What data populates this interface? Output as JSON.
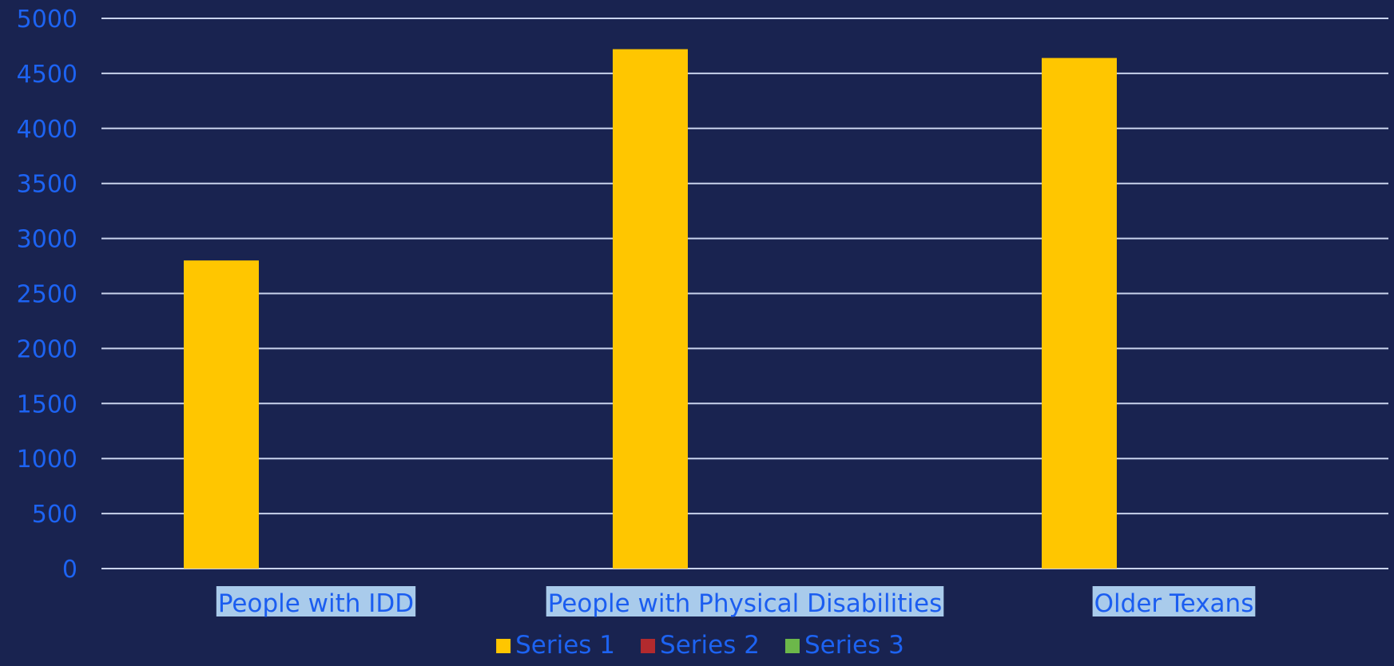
{
  "colors": {
    "background": "#192350",
    "gridline": "#C9D3EC",
    "axis_text": "#1D63F2",
    "category_label_bg": "#A9CBEB",
    "category_label_text": "#1B5DF0"
  },
  "chart_data": {
    "type": "bar",
    "categories": [
      "People with IDD",
      "People with Physical Disabilities",
      "Older Texans"
    ],
    "series": [
      {
        "name": "Series 1",
        "color": "#FFC600",
        "values": [
          2800,
          4720,
          4640
        ]
      },
      {
        "name": "Series 2",
        "color": "#B22A2E",
        "values": [
          0,
          0,
          0
        ]
      },
      {
        "name": "Series 3",
        "color": "#6CB84A",
        "values": [
          0,
          0,
          0
        ]
      }
    ],
    "ylim": [
      0,
      5000
    ],
    "yticks": [
      0,
      500,
      1000,
      1500,
      2000,
      2500,
      3000,
      3500,
      4000,
      4500,
      5000
    ],
    "grid": true,
    "legend_position": "bottom"
  }
}
